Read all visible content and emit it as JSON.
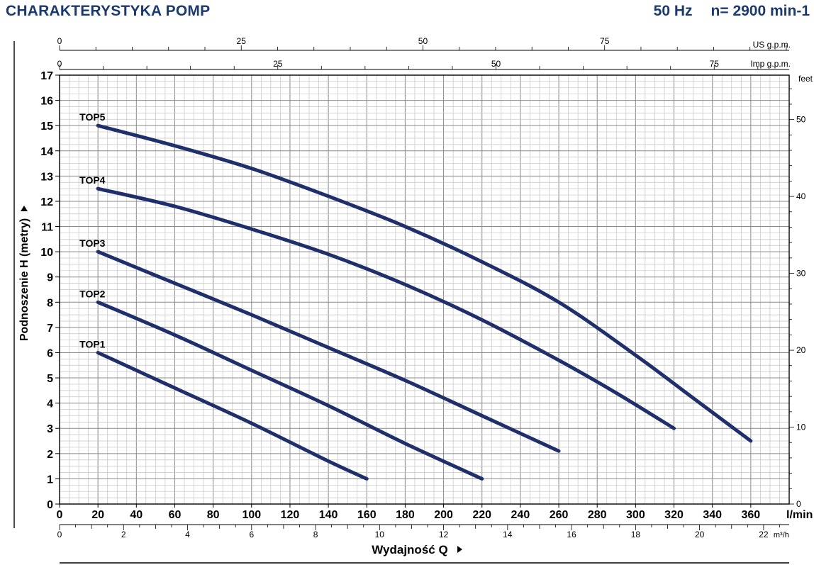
{
  "header": {
    "title": "CHARAKTERYSTYKA POMP",
    "frequency": "50 Hz",
    "speed": "n= 2900 min-1"
  },
  "colors": {
    "title": "#1d3a6e",
    "curve": "#1e2f6b",
    "grid_major": "#8a8a8a",
    "grid_minor": "#c4c4c4"
  },
  "chart_data": {
    "type": "line",
    "xlabel": "Wydajność Q",
    "ylabel": "Podnoszenie H (metry)",
    "xlim": [
      0,
      380
    ],
    "ylim": [
      0,
      17
    ],
    "grid": true,
    "x_ticks": [
      0,
      20,
      40,
      60,
      80,
      100,
      120,
      140,
      160,
      180,
      200,
      220,
      240,
      260,
      280,
      300,
      320,
      340,
      360
    ],
    "x_unit": "l/min",
    "y_ticks": [
      0,
      1,
      2,
      3,
      4,
      5,
      6,
      7,
      8,
      9,
      10,
      11,
      12,
      13,
      14,
      15,
      16,
      17
    ],
    "axes": {
      "m3h": {
        "unit": "m³/h",
        "ticks": [
          0,
          2,
          4,
          6,
          8,
          10,
          12,
          14,
          16,
          18,
          20,
          22
        ]
      },
      "us_gpm": {
        "unit": "US g.p.m.",
        "ticks": [
          0,
          25,
          50,
          75
        ]
      },
      "imp_gpm": {
        "unit": "Imp g.p.m.",
        "ticks": [
          0,
          25,
          50,
          75
        ]
      },
      "feet": {
        "unit": "feet",
        "ticks": [
          0,
          10,
          20,
          30,
          40,
          50
        ]
      }
    },
    "series": [
      {
        "name": "TOP1",
        "x": [
          20,
          60,
          100,
          140,
          160
        ],
        "y": [
          6,
          4.6,
          3.2,
          1.7,
          1
        ]
      },
      {
        "name": "TOP2",
        "x": [
          20,
          60,
          100,
          140,
          180,
          220
        ],
        "y": [
          8,
          6.7,
          5.3,
          3.9,
          2.4,
          1
        ]
      },
      {
        "name": "TOP3",
        "x": [
          20,
          60,
          100,
          140,
          180,
          220,
          260
        ],
        "y": [
          10,
          8.75,
          7.5,
          6.2,
          4.9,
          3.5,
          2.1
        ]
      },
      {
        "name": "TOP4",
        "x": [
          20,
          60,
          100,
          140,
          180,
          220,
          260,
          290,
          320
        ],
        "y": [
          12.5,
          11.8,
          10.9,
          9.9,
          8.7,
          7.3,
          5.7,
          4.4,
          3
        ]
      },
      {
        "name": "TOP5",
        "x": [
          20,
          60,
          100,
          140,
          180,
          220,
          260,
          300,
          330,
          360
        ],
        "y": [
          15,
          14.2,
          13.3,
          12.2,
          11,
          9.6,
          8,
          5.9,
          4.2,
          2.5
        ]
      }
    ]
  }
}
